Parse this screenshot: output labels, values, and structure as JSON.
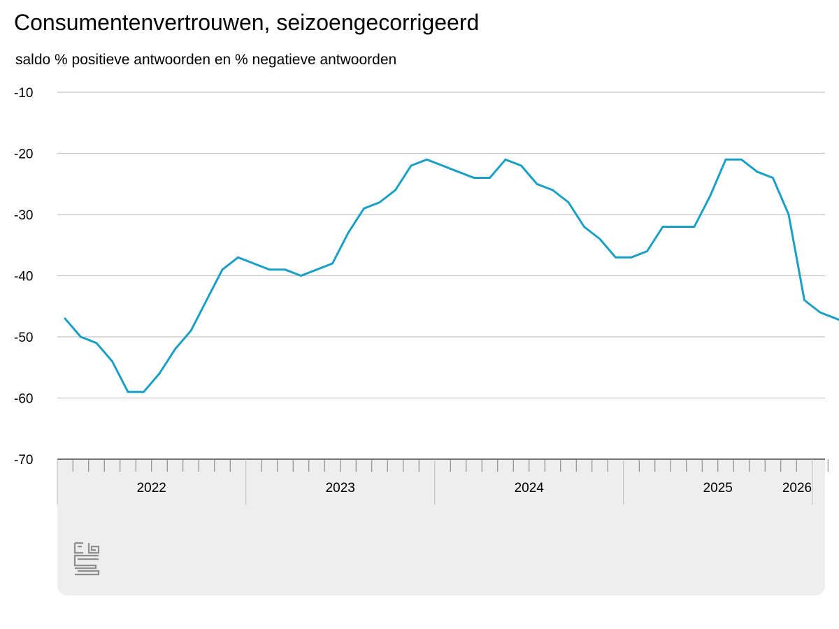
{
  "title": "Consumentenvertrouwen, seizoengecorrigeerd",
  "subtitle": "saldo % positieve antwoorden en % negatieve antwoorden",
  "logo": {
    "text": "cbs",
    "icon": "cbs-logo-icon"
  },
  "colors": {
    "line": "#1a9fc5",
    "grid": "#c8c8c8",
    "axis": "#7a7a7a",
    "footer_bg": "#eeeeee"
  },
  "chart_data": {
    "type": "line",
    "title": "Consumentenvertrouwen, seizoengecorrigeerd",
    "subtitle": "saldo % positieve antwoorden en % negatieve antwoorden",
    "xlabel": "",
    "ylabel": "",
    "ylim": [
      -70,
      -10
    ],
    "yticks": [
      -10,
      -20,
      -30,
      -40,
      -50,
      -60,
      -70
    ],
    "grid": true,
    "x_start": "2022-01",
    "x_end": "2026-03",
    "year_labels": [
      "2022",
      "2023",
      "2024",
      "2025",
      "2026"
    ],
    "x": [
      "2022-01",
      "2022-02",
      "2022-03",
      "2022-04",
      "2022-05",
      "2022-06",
      "2022-07",
      "2022-08",
      "2022-09",
      "2022-10",
      "2022-11",
      "2022-12",
      "2023-01",
      "2023-02",
      "2023-03",
      "2023-04",
      "2023-05",
      "2023-06",
      "2023-07",
      "2023-08",
      "2023-09",
      "2023-10",
      "2023-11",
      "2023-12",
      "2024-01",
      "2024-02",
      "2024-03",
      "2024-04",
      "2024-05",
      "2024-06",
      "2024-07",
      "2024-08",
      "2024-09",
      "2024-10",
      "2024-11",
      "2024-12",
      "2025-01",
      "2025-02",
      "2025-03",
      "2025-04",
      "2025-05",
      "2025-06",
      "2025-07",
      "2025-08",
      "2025-09",
      "2025-10",
      "2025-11",
      "2025-12",
      "2026-01",
      "2026-02",
      "2026-03"
    ],
    "series": [
      {
        "values": [
          -47,
          -50,
          -51,
          -54,
          -59,
          -59,
          -56,
          -52,
          -49,
          -44,
          -39,
          -37,
          -38,
          -39,
          -39,
          -40,
          -39,
          -38,
          -33,
          -29,
          -28,
          -26,
          -22,
          -21,
          -22,
          -23,
          -24,
          -24,
          -21,
          -22,
          -25,
          -26,
          -28,
          -32,
          -34,
          -37,
          -37,
          -36,
          -32,
          -32,
          -32,
          -27,
          -21,
          -21,
          -23,
          -24,
          -30,
          -44,
          -46,
          -47,
          -48
        ]
      }
    ]
  }
}
